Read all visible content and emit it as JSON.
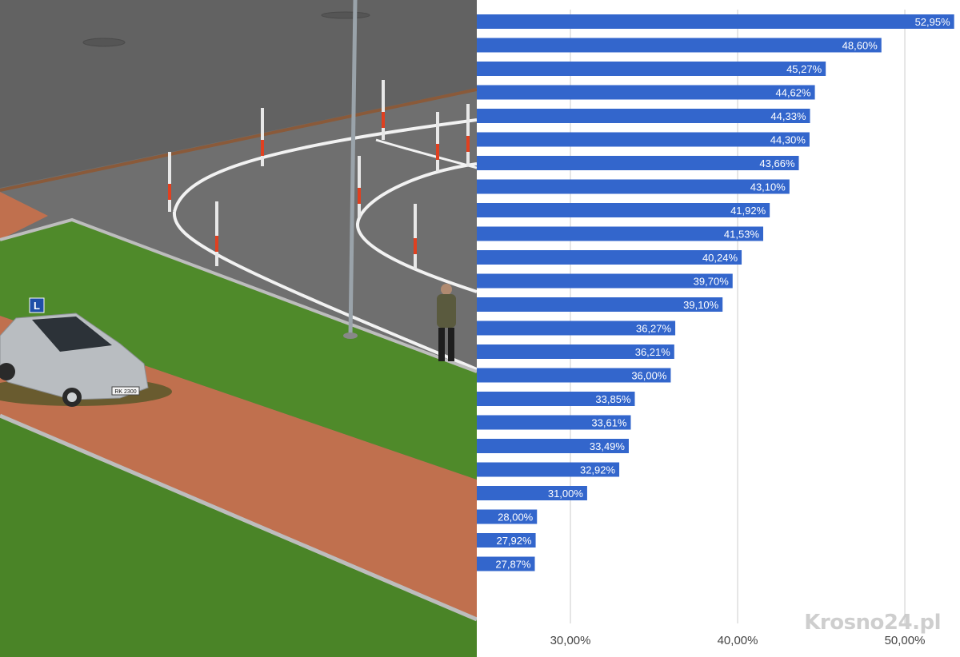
{
  "photo": {
    "description_icon": "driving-school-photo",
    "car_sign": "L",
    "plate": "RK 2300"
  },
  "watermark": {
    "text": "Krosno24.pl"
  },
  "chart_data": {
    "type": "bar",
    "orientation": "horizontal",
    "title": "",
    "xlabel": "",
    "ylabel": "",
    "values": [
      52.95,
      48.6,
      45.27,
      44.62,
      44.33,
      44.3,
      43.66,
      43.1,
      41.92,
      41.53,
      40.24,
      39.7,
      39.1,
      36.27,
      36.21,
      36.0,
      33.85,
      33.61,
      33.49,
      32.92,
      31.0,
      28.0,
      27.92,
      27.87
    ],
    "value_labels": [
      "52,95%",
      "48,60%",
      "45,27%",
      "44,62%",
      "44,33%",
      "44,30%",
      "43,66%",
      "43,10%",
      "41,92%",
      "41,53%",
      "40,24%",
      "39,70%",
      "39,10%",
      "36,27%",
      "36,21%",
      "36,00%",
      "33,85%",
      "33,61%",
      "33,49%",
      "32,92%",
      "31,00%",
      "28,00%",
      "27,92%",
      "27,87%"
    ],
    "xlim": [
      24.4,
      53.3
    ],
    "xticks": [
      30,
      40,
      50
    ],
    "xtick_labels": [
      "30,00%",
      "40,00%",
      "50,00%"
    ],
    "grid": true,
    "legend": "none",
    "bar_color": "#3366cc",
    "grid_color": "#cccccc"
  }
}
